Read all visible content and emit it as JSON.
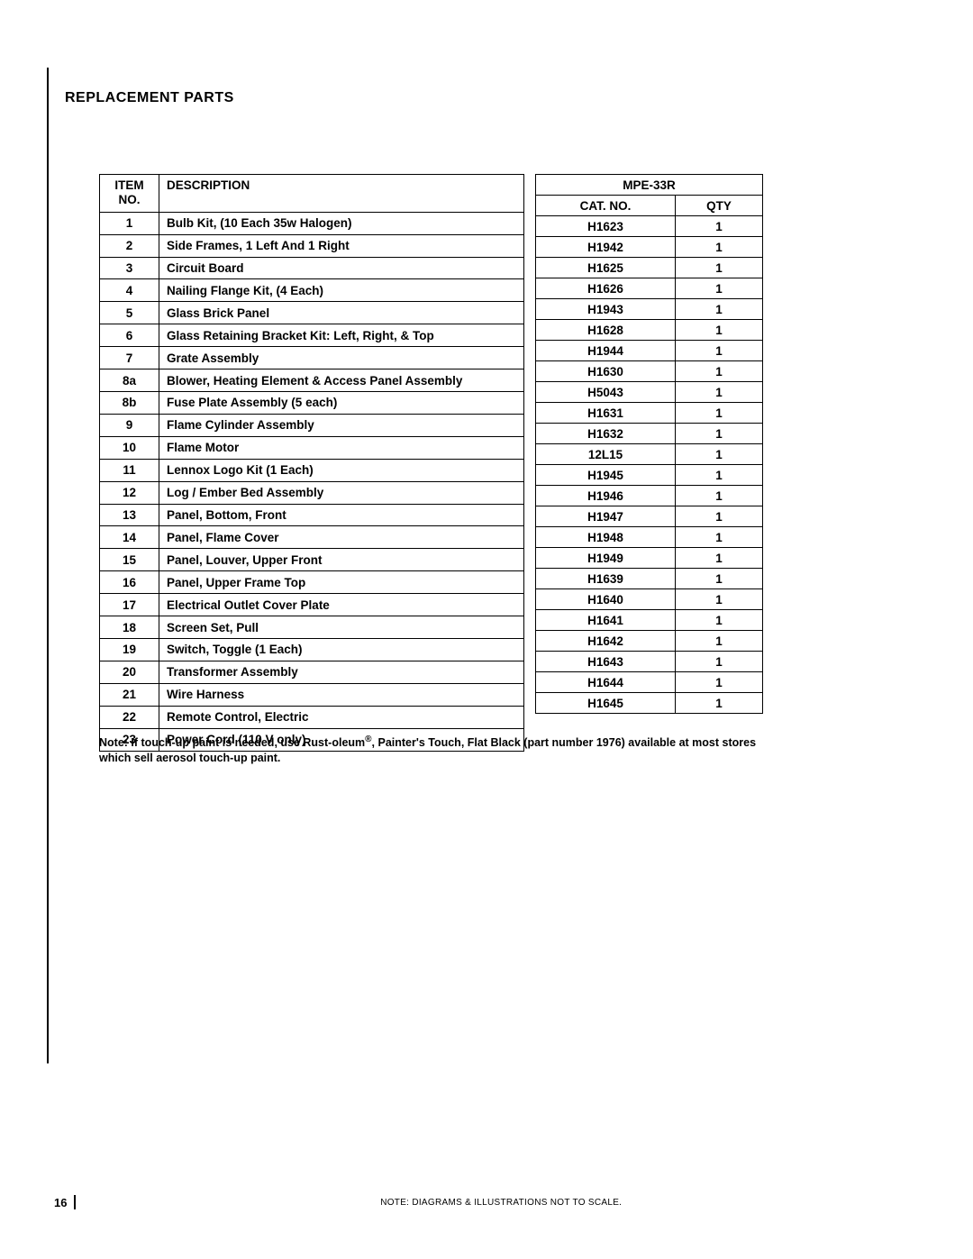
{
  "section_title": "REPLACEMENT PARTS",
  "table": {
    "headers": {
      "item_no": "ITEM NO.",
      "description": "DESCRIPTION",
      "model": "MPE-33R",
      "cat_no": "CAT. NO.",
      "qty": "QTY"
    },
    "rows": [
      {
        "item": "1",
        "desc": "Bulb Kit, (10 Each 35w Halogen)",
        "cat": "H1623",
        "qty": "1"
      },
      {
        "item": "2",
        "desc": "Side Frames, 1 Left And 1 Right",
        "cat": "H1942",
        "qty": "1"
      },
      {
        "item": "3",
        "desc": "Circuit Board",
        "cat": "H1625",
        "qty": "1"
      },
      {
        "item": "4",
        "desc": "Nailing Flange Kit, (4 Each)",
        "cat": "H1626",
        "qty": "1"
      },
      {
        "item": "5",
        "desc": "Glass Brick Panel",
        "cat": "H1943",
        "qty": "1"
      },
      {
        "item": "6",
        "desc": "Glass Retaining Bracket Kit: Left, Right, & Top",
        "cat": "H1628",
        "qty": "1"
      },
      {
        "item": "7",
        "desc": "Grate Assembly",
        "cat": "H1944",
        "qty": "1"
      },
      {
        "item": "8a",
        "desc": "Blower, Heating Element & Access Panel Assembly",
        "cat": "H1630",
        "qty": "1"
      },
      {
        "item": "8b",
        "desc": "Fuse Plate Assembly (5 each)",
        "cat": "H5043",
        "qty": "1"
      },
      {
        "item": "9",
        "desc": "Flame Cylinder Assembly",
        "cat": "H1631",
        "qty": "1"
      },
      {
        "item": "10",
        "desc": "Flame Motor",
        "cat": "H1632",
        "qty": "1"
      },
      {
        "item": "11",
        "desc": "Lennox Logo Kit (1 Each)",
        "cat": "12L15",
        "qty": "1"
      },
      {
        "item": "12",
        "desc": "Log / Ember Bed Assembly",
        "cat": "H1945",
        "qty": "1"
      },
      {
        "item": "13",
        "desc": "Panel, Bottom, Front",
        "cat": "H1946",
        "qty": "1"
      },
      {
        "item": "14",
        "desc": "Panel, Flame Cover",
        "cat": "H1947",
        "qty": "1"
      },
      {
        "item": "15",
        "desc": "Panel, Louver, Upper Front",
        "cat": "H1948",
        "qty": "1"
      },
      {
        "item": "16",
        "desc": "Panel, Upper Frame Top",
        "cat": "H1949",
        "qty": "1"
      },
      {
        "item": "17",
        "desc": "Electrical Outlet Cover Plate",
        "cat": "H1639",
        "qty": "1"
      },
      {
        "item": "18",
        "desc": "Screen Set, Pull",
        "cat": "H1640",
        "qty": "1"
      },
      {
        "item": "19",
        "desc": "Switch, Toggle (1 Each)",
        "cat": "H1641",
        "qty": "1"
      },
      {
        "item": "20",
        "desc": "Transformer Assembly",
        "cat": "H1642",
        "qty": "1"
      },
      {
        "item": "21",
        "desc": "Wire Harness",
        "cat": "H1643",
        "qty": "1"
      },
      {
        "item": "22",
        "desc": "Remote Control, Electric",
        "cat": "H1644",
        "qty": "1"
      },
      {
        "item": "23",
        "desc": "Power Cord (110 V only)",
        "cat": "H1645",
        "qty": "1"
      }
    ]
  },
  "note_prefix": "Note: If touch-up paint is needed, use Rust-oleum",
  "note_suffix": ", Painter's Touch, Flat Black (part number 1976) available at most stores which sell aerosol touch-up paint.",
  "footer": {
    "page_num": "16",
    "note": "NOTE: DIAGRAMS & ILLUSTRATIONS NOT TO SCALE."
  }
}
